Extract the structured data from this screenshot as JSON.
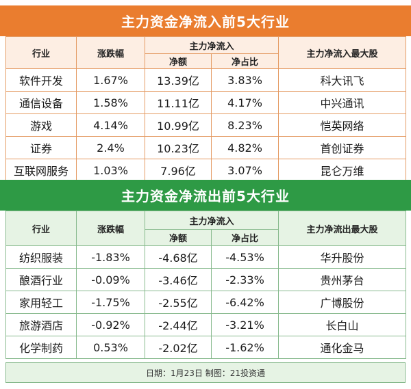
{
  "top": {
    "title": "主力资金净流入前5大行业",
    "headers": {
      "industry": "行业",
      "change": "涨跌幅",
      "group": "主力净流入",
      "amount": "净额",
      "ratio": "净占比",
      "stock": "主力净流入最大股"
    },
    "rows": [
      {
        "industry": "软件开发",
        "change": "1.67%",
        "amount": "13.39亿",
        "ratio": "3.83%",
        "stock": "科大讯飞"
      },
      {
        "industry": "通信设备",
        "change": "1.58%",
        "amount": "11.11亿",
        "ratio": "4.17%",
        "stock": "中兴通讯"
      },
      {
        "industry": "游戏",
        "change": "4.14%",
        "amount": "10.99亿",
        "ratio": "8.23%",
        "stock": "恺英网络"
      },
      {
        "industry": "证券",
        "change": "2.4%",
        "amount": "10.23亿",
        "ratio": "4.82%",
        "stock": "首创证券"
      },
      {
        "industry": "互联网服务",
        "change": "1.03%",
        "amount": "7.96亿",
        "ratio": "3.07%",
        "stock": "昆仑万维"
      }
    ]
  },
  "bottom": {
    "title": "主力资金净流出前5大行业",
    "headers": {
      "industry": "行业",
      "change": "涨跌幅",
      "group": "主力净流入",
      "amount": "净额",
      "ratio": "净占比",
      "stock": "主力净流出最大股"
    },
    "rows": [
      {
        "industry": "纺织服装",
        "change": "-1.83%",
        "amount": "-4.68亿",
        "ratio": "-4.53%",
        "stock": "华升股份"
      },
      {
        "industry": "酿酒行业",
        "change": "-0.09%",
        "amount": "-3.46亿",
        "ratio": "-2.33%",
        "stock": "贵州茅台"
      },
      {
        "industry": "家用轻工",
        "change": "-1.75%",
        "amount": "-2.55亿",
        "ratio": "-6.42%",
        "stock": "广博股份"
      },
      {
        "industry": "旅游酒店",
        "change": "-0.92%",
        "amount": "-2.44亿",
        "ratio": "-3.21%",
        "stock": "长白山"
      },
      {
        "industry": "化学制药",
        "change": "0.53%",
        "amount": "-2.02亿",
        "ratio": "-1.62%",
        "stock": "通化金马"
      }
    ]
  },
  "footer": "日期：1月23日 制图：21投资通",
  "colors": {
    "top_accent": "#ea7d2f",
    "bottom_accent": "#2e9a45"
  }
}
